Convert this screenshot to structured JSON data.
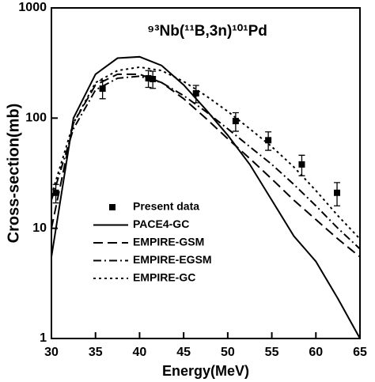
{
  "chart_data": {
    "type": "line",
    "title": "⁹³Nb(¹¹B,3n)¹⁰¹Pd",
    "x_label": "Energy(MeV)",
    "y_label": "Cross-section(mb)",
    "xlim": [
      30,
      65
    ],
    "xticks": [
      30,
      35,
      40,
      45,
      50,
      55,
      60,
      65
    ],
    "ylim": [
      1,
      1000
    ],
    "yticks": [
      1,
      10,
      100,
      1000
    ],
    "y_scale": "log",
    "legend": "left",
    "color": "#000000",
    "x": [
      30,
      32.5,
      35,
      37.5,
      40,
      42.5,
      45,
      47.5,
      50,
      52.5,
      55,
      57.5,
      60,
      62.5,
      65
    ],
    "series": [
      {
        "name": "Present data",
        "type": "scatter",
        "marker": "square",
        "x": [
          30.5,
          35.8,
          41,
          41.5,
          46.4,
          50.9,
          54.6,
          58.4,
          62.4
        ],
        "values": [
          21,
          185,
          230,
          226,
          168,
          94,
          63,
          38,
          21
        ],
        "errors": [
          4,
          35,
          40,
          40,
          30,
          18,
          12,
          8,
          5
        ]
      },
      {
        "name": "PACE4-GC",
        "dash": "solid",
        "values": [
          5.5,
          100,
          250,
          350,
          360,
          300,
          200,
          120,
          70,
          38,
          18,
          8.5,
          5,
          2.3,
          1
        ]
      },
      {
        "name": "EMPIRE-GSM",
        "dash": "dashed",
        "values": [
          10,
          90,
          200,
          250,
          250,
          210,
          150,
          100,
          65,
          43,
          28,
          18,
          12,
          8,
          5.5
        ]
      },
      {
        "name": "EMPIRE-EGSM",
        "dash": "dashdot",
        "values": [
          18,
          80,
          180,
          230,
          240,
          210,
          160,
          115,
          80,
          55,
          38,
          25,
          16,
          10,
          6.5
        ]
      },
      {
        "name": "EMPIRE-GC",
        "dash": "dotted",
        "values": [
          20,
          90,
          210,
          270,
          290,
          270,
          215,
          160,
          115,
          80,
          55,
          36,
          22,
          13,
          8
        ]
      }
    ]
  }
}
